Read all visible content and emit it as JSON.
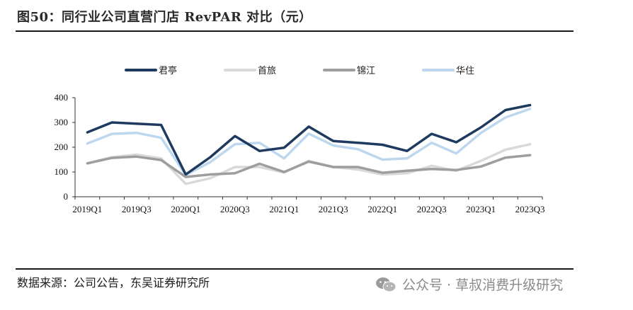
{
  "header": {
    "title": "图50：同行业公司直营门店 RevPAR 对比（元）"
  },
  "footer": {
    "source": "数据来源：公司公告，东吴证券研究所",
    "watermark": "公众号 · 草叔消费升级研究"
  },
  "colors": {
    "junting": "#1f3a5f",
    "shoulv": "#d9d9d9",
    "jinjiang": "#9e9e9e",
    "huazhu": "#bdd7ee"
  },
  "icons": {
    "watermark": "wechat-icon"
  },
  "chart_data": {
    "type": "line",
    "title": "",
    "xlabel": "",
    "ylabel": "",
    "ylim": [
      0,
      400
    ],
    "yticks": [
      0,
      100,
      200,
      300,
      400
    ],
    "grid": false,
    "legend_position": "top",
    "categories": [
      "2019Q1",
      "2019Q2",
      "2019Q3",
      "2019Q4",
      "2020Q1",
      "2020Q2",
      "2020Q3",
      "2020Q4",
      "2021Q1",
      "2021Q2",
      "2021Q3",
      "2021Q4",
      "2022Q1",
      "2022Q2",
      "2022Q3",
      "2022Q4",
      "2023Q1",
      "2023Q2",
      "2023Q3"
    ],
    "xtick_labels": [
      "2019Q1",
      "2019Q3",
      "2020Q1",
      "2020Q3",
      "2021Q1",
      "2021Q3",
      "2022Q1",
      "2022Q3",
      "2023Q1",
      "2023Q3"
    ],
    "series": [
      {
        "name": "君亭",
        "color": "#1f3a5f",
        "values": [
          260,
          300,
          295,
          290,
          90,
          160,
          245,
          185,
          198,
          283,
          225,
          218,
          210,
          185,
          254,
          220,
          280,
          350,
          370
        ]
      },
      {
        "name": "首旅",
        "color": "#d9d9d9",
        "values": [
          135,
          160,
          170,
          155,
          52,
          75,
          120,
          120,
          98,
          145,
          120,
          110,
          90,
          95,
          125,
          105,
          145,
          190,
          212
        ]
      },
      {
        "name": "锦江",
        "color": "#9e9e9e",
        "values": [
          135,
          157,
          162,
          148,
          80,
          90,
          95,
          133,
          100,
          142,
          120,
          120,
          97,
          105,
          112,
          108,
          122,
          158,
          168
        ]
      },
      {
        "name": "华住",
        "color": "#bdd7ee",
        "values": [
          215,
          254,
          258,
          238,
          88,
          140,
          212,
          218,
          155,
          255,
          207,
          192,
          150,
          155,
          218,
          175,
          258,
          320,
          355
        ]
      }
    ]
  }
}
